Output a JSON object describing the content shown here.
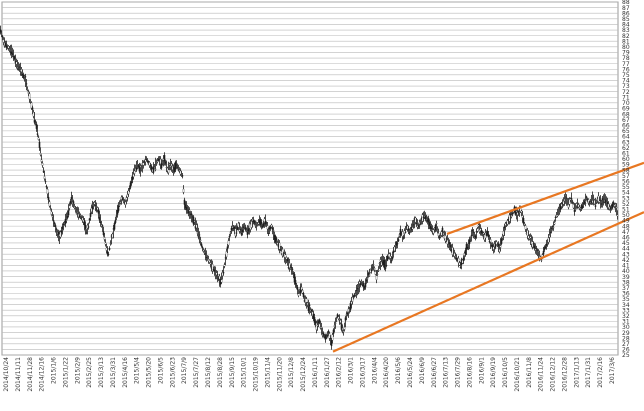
{
  "chart_data": {
    "type": "candlestick",
    "title": "",
    "xlabel": "",
    "ylabel": "",
    "ylim": [
      25,
      88
    ],
    "y_ticks": [
      25,
      26,
      27,
      28,
      29,
      30,
      31,
      32,
      33,
      34,
      35,
      36,
      37,
      38,
      39,
      40,
      41,
      42,
      43,
      44,
      45,
      46,
      47,
      48,
      49,
      50,
      51,
      52,
      53,
      54,
      55,
      56,
      57,
      58,
      59,
      60,
      61,
      62,
      63,
      64,
      65,
      66,
      67,
      68,
      69,
      70,
      71,
      72,
      73,
      74,
      75,
      76,
      77,
      78,
      79,
      80,
      81,
      82,
      83,
      84,
      85,
      86,
      87,
      88
    ],
    "x_tick_labels": [
      "2014/10/24",
      "2014/11/11",
      "2014/11/28",
      "2014/12/16",
      "2015/1/6",
      "2015/1/22",
      "2015/2/9",
      "2015/2/25",
      "2015/3/13",
      "2015/3/31",
      "2015/4/16",
      "2015/5/4",
      "2015/5/20",
      "2015/6/5",
      "2015/6/23",
      "2015/7/9",
      "2015/7/27",
      "2015/8/12",
      "2015/8/28",
      "2015/9/15",
      "2015/10/1",
      "2015/10/19",
      "2015/11/4",
      "2015/11/20",
      "2015/12/8",
      "2015/12/24",
      "2016/1/11",
      "2016/1/27",
      "2016/2/12",
      "2016/3/1",
      "2016/3/17",
      "2016/4/4",
      "2016/4/20",
      "2016/5/6",
      "2016/5/24",
      "2016/6/9",
      "2016/6/27",
      "2016/7/13",
      "2016/7/29",
      "2016/8/16",
      "2016/9/1",
      "2016/9/19",
      "2016/10/5",
      "2016/10/21",
      "2016/11/8",
      "2016/11/24",
      "2016/12/12",
      "2016/12/28",
      "2017/1/13",
      "2017/1/31",
      "2017/2/16",
      "2017/3/6"
    ],
    "series_points": [
      [
        0,
        83
      ],
      [
        3,
        81
      ],
      [
        7,
        80
      ],
      [
        12,
        79
      ],
      [
        16,
        77
      ],
      [
        20,
        76
      ],
      [
        25,
        74
      ],
      [
        29,
        71
      ],
      [
        33,
        68
      ],
      [
        37,
        65
      ],
      [
        41,
        60
      ],
      [
        45,
        56
      ],
      [
        49,
        52
      ],
      [
        53,
        49
      ],
      [
        56,
        47
      ],
      [
        59,
        46
      ],
      [
        63,
        48
      ],
      [
        67,
        50
      ],
      [
        71,
        53
      ],
      [
        75,
        51
      ],
      [
        79,
        50
      ],
      [
        83,
        49
      ],
      [
        86,
        47
      ],
      [
        88,
        48
      ],
      [
        91,
        51
      ],
      [
        94,
        52
      ],
      [
        97,
        51
      ],
      [
        100,
        49
      ],
      [
        103,
        47
      ],
      [
        106,
        44
      ],
      [
        108,
        43
      ],
      [
        110,
        45
      ],
      [
        113,
        47
      ],
      [
        116,
        50
      ],
      [
        119,
        52
      ],
      [
        122,
        53
      ],
      [
        125,
        52
      ],
      [
        128,
        54
      ],
      [
        131,
        56
      ],
      [
        134,
        58
      ],
      [
        137,
        59
      ],
      [
        140,
        58
      ],
      [
        143,
        59
      ],
      [
        146,
        60
      ],
      [
        149,
        59
      ],
      [
        152,
        58
      ],
      [
        155,
        59
      ],
      [
        158,
        60
      ],
      [
        161,
        59
      ],
      [
        164,
        60
      ],
      [
        167,
        58
      ],
      [
        170,
        59
      ],
      [
        173,
        58
      ],
      [
        176,
        59
      ],
      [
        179,
        58
      ],
      [
        182,
        57
      ],
      [
        184,
        52
      ],
      [
        187,
        51
      ],
      [
        190,
        50
      ],
      [
        193,
        49
      ],
      [
        196,
        48
      ],
      [
        199,
        46
      ],
      [
        202,
        44
      ],
      [
        205,
        43
      ],
      [
        208,
        42
      ],
      [
        211,
        41
      ],
      [
        214,
        40
      ],
      [
        217,
        39
      ],
      [
        220,
        38
      ],
      [
        223,
        40
      ],
      [
        226,
        43
      ],
      [
        229,
        46
      ],
      [
        232,
        48
      ],
      [
        235,
        47
      ],
      [
        238,
        48
      ],
      [
        241,
        47
      ],
      [
        244,
        48
      ],
      [
        247,
        47
      ],
      [
        250,
        48
      ],
      [
        253,
        49
      ],
      [
        256,
        48
      ],
      [
        259,
        49
      ],
      [
        262,
        48
      ],
      [
        265,
        49
      ],
      [
        268,
        47
      ],
      [
        271,
        48
      ],
      [
        274,
        46
      ],
      [
        277,
        45
      ],
      [
        280,
        44
      ],
      [
        283,
        43
      ],
      [
        286,
        42
      ],
      [
        289,
        41
      ],
      [
        292,
        40
      ],
      [
        295,
        38
      ],
      [
        298,
        36
      ],
      [
        301,
        37
      ],
      [
        304,
        35
      ],
      [
        307,
        34
      ],
      [
        310,
        33
      ],
      [
        313,
        32
      ],
      [
        316,
        30
      ],
      [
        319,
        31
      ],
      [
        322,
        29
      ],
      [
        325,
        28
      ],
      [
        328,
        29
      ],
      [
        331,
        27
      ],
      [
        334,
        30
      ],
      [
        337,
        32
      ],
      [
        340,
        31
      ],
      [
        343,
        29
      ],
      [
        346,
        32
      ],
      [
        349,
        33
      ],
      [
        352,
        35
      ],
      [
        355,
        36
      ],
      [
        358,
        37
      ],
      [
        361,
        38
      ],
      [
        364,
        37
      ],
      [
        367,
        39
      ],
      [
        370,
        40
      ],
      [
        373,
        41
      ],
      [
        376,
        39
      ],
      [
        379,
        41
      ],
      [
        382,
        42
      ],
      [
        385,
        41
      ],
      [
        388,
        43
      ],
      [
        391,
        42
      ],
      [
        394,
        44
      ],
      [
        397,
        45
      ],
      [
        400,
        47
      ],
      [
        403,
        46
      ],
      [
        406,
        48
      ],
      [
        409,
        47
      ],
      [
        412,
        48
      ],
      [
        415,
        49
      ],
      [
        418,
        48
      ],
      [
        421,
        49
      ],
      [
        424,
        50
      ],
      [
        427,
        49
      ],
      [
        430,
        48
      ],
      [
        433,
        47
      ],
      [
        436,
        48
      ],
      [
        439,
        46
      ],
      [
        442,
        47
      ],
      [
        445,
        46
      ],
      [
        448,
        45
      ],
      [
        451,
        44
      ],
      [
        454,
        43
      ],
      [
        457,
        42
      ],
      [
        460,
        41
      ],
      [
        463,
        42
      ],
      [
        466,
        44
      ],
      [
        469,
        45
      ],
      [
        472,
        47
      ],
      [
        475,
        46
      ],
      [
        478,
        48
      ],
      [
        481,
        47
      ],
      [
        484,
        46
      ],
      [
        487,
        47
      ],
      [
        490,
        45
      ],
      [
        493,
        44
      ],
      [
        496,
        45
      ],
      [
        499,
        44
      ],
      [
        502,
        46
      ],
      [
        505,
        48
      ],
      [
        508,
        49
      ],
      [
        511,
        50
      ],
      [
        514,
        51
      ],
      [
        517,
        50
      ],
      [
        520,
        51
      ],
      [
        523,
        49
      ],
      [
        526,
        47
      ],
      [
        529,
        46
      ],
      [
        532,
        45
      ],
      [
        535,
        44
      ],
      [
        538,
        43
      ],
      [
        541,
        42
      ],
      [
        544,
        44
      ],
      [
        547,
        45
      ],
      [
        550,
        47
      ],
      [
        553,
        48
      ],
      [
        556,
        50
      ],
      [
        559,
        51
      ],
      [
        562,
        52
      ],
      [
        565,
        53
      ],
      [
        568,
        52
      ],
      [
        571,
        53
      ],
      [
        574,
        51
      ],
      [
        577,
        52
      ],
      [
        580,
        51
      ],
      [
        583,
        52
      ],
      [
        586,
        53
      ],
      [
        589,
        52
      ],
      [
        592,
        53
      ],
      [
        595,
        52
      ],
      [
        598,
        53
      ],
      [
        601,
        52
      ],
      [
        604,
        53
      ],
      [
        607,
        52
      ],
      [
        610,
        51
      ],
      [
        613,
        52
      ],
      [
        616,
        51
      ],
      [
        618,
        49
      ]
    ],
    "trendlines": [
      {
        "color": "#e87722",
        "from": [
          333,
          25.6
        ],
        "to": [
          644,
          50.5
        ]
      },
      {
        "color": "#e87722",
        "from": [
          447,
          46.6
        ],
        "to": [
          644,
          59.3
        ]
      }
    ],
    "grid": true,
    "colors": {
      "grid": "#b9b9b9",
      "price": "#1f1f1f",
      "trend": "#e87722"
    }
  }
}
